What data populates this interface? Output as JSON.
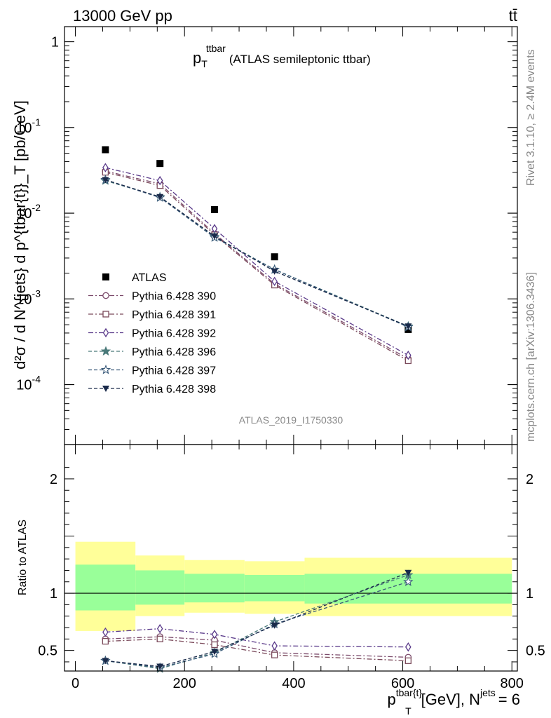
{
  "header": {
    "energy_label": "13000 GeV pp",
    "process_label": "tt̄"
  },
  "side": {
    "rivet_label": "Rivet 3.1.10, ≥ 2.4M events",
    "mcplots_label": "mcplots.cern.ch [arXiv:1306.3436]"
  },
  "watermark": "ATLAS_2019_I1750330",
  "chart_data": [
    {
      "type": "scatter",
      "title": "p_T^{ttbar} (ATLAS semileptonic ttbar)",
      "title_main": "p",
      "title_sub": "T",
      "title_sup": "ttbar",
      "title_rest": "(ATLAS semileptonic ttbar)",
      "ylabel": "d²σ / d N^{jets} d p^{tbar{t}}_T [pb/GeV]",
      "yscale": "log",
      "ylim": [
        2e-05,
        1.5
      ],
      "xlim": [
        -20,
        810
      ],
      "y_ticks": [
        {
          "value": 1,
          "label": "1"
        },
        {
          "value": 0.1,
          "label": "10^{-1}"
        },
        {
          "value": 0.01,
          "label": "10^{-2}"
        },
        {
          "value": 0.001,
          "label": "10^{-3}"
        },
        {
          "value": 0.0001,
          "label": "10^{-4}"
        }
      ],
      "legend_position": "left-middle",
      "series": [
        {
          "name": "ATLAS",
          "marker": "filled-square",
          "color": "#000000",
          "x": [
            55,
            155,
            255,
            365,
            610
          ],
          "y": [
            0.055,
            0.038,
            0.011,
            0.0031,
            0.00044
          ]
        },
        {
          "name": "Pythia 6.428 390",
          "marker": "open-circle",
          "line": "dashdot",
          "color": "#7b4a6b",
          "x": [
            55,
            155,
            255,
            365,
            610
          ],
          "y": [
            0.031,
            0.022,
            0.0058,
            0.0015,
            0.0002
          ]
        },
        {
          "name": "Pythia 6.428 391",
          "marker": "open-square",
          "line": "dashdot",
          "color": "#7b4a5b",
          "x": [
            55,
            155,
            255,
            365,
            610
          ],
          "y": [
            0.03,
            0.021,
            0.0056,
            0.00145,
            0.00019
          ]
        },
        {
          "name": "Pythia 6.428 392",
          "marker": "open-diamond",
          "line": "dashdot",
          "color": "#5a3a8a",
          "x": [
            55,
            155,
            255,
            365,
            610
          ],
          "y": [
            0.034,
            0.024,
            0.0066,
            0.0016,
            0.00022
          ]
        },
        {
          "name": "Pythia 6.428 396",
          "marker": "star",
          "line": "dashed",
          "color": "#4a7a7a",
          "x": [
            55,
            155,
            255,
            365,
            610
          ],
          "y": [
            0.024,
            0.0155,
            0.0053,
            0.0022,
            0.00048
          ]
        },
        {
          "name": "Pythia 6.428 397",
          "marker": "open-star",
          "line": "dashed",
          "color": "#3a5a7a",
          "x": [
            55,
            155,
            255,
            365,
            610
          ],
          "y": [
            0.0245,
            0.0152,
            0.0052,
            0.0022,
            0.00047
          ]
        },
        {
          "name": "Pythia 6.428 398",
          "marker": "filled-triangle-down",
          "line": "dashed",
          "color": "#1a2a4a",
          "x": [
            55,
            155,
            255,
            365,
            610
          ],
          "y": [
            0.0245,
            0.0155,
            0.0054,
            0.0021,
            0.00048
          ]
        }
      ]
    },
    {
      "type": "scatter",
      "ylabel": "Ratio to ATLAS",
      "xlabel": "p^{tbar{t}}_T [GeV], N^{jets} = 6",
      "xlabel_main": "p",
      "xlabel_sup": "tbar{t}",
      "xlabel_sub": "T",
      "xlabel_rest": "[GeV], N",
      "xlabel_sup2": "jets",
      "xlabel_end": "= 6",
      "yscale": "linear",
      "ylim": [
        0.32,
        2.3
      ],
      "xlim": [
        -20,
        810
      ],
      "x_ticks": [
        {
          "value": 0,
          "label": "0"
        },
        {
          "value": 200,
          "label": "200"
        },
        {
          "value": 400,
          "label": "400"
        },
        {
          "value": 600,
          "label": "600"
        },
        {
          "value": 800,
          "label": "800"
        }
      ],
      "y_ticks": [
        {
          "value": 0.5,
          "label": "0.5"
        },
        {
          "value": 1,
          "label": "1"
        },
        {
          "value": 2,
          "label": "2"
        }
      ],
      "uncertainty_bands": [
        {
          "x_low": 0,
          "x_high": 110,
          "stat_low": 0.85,
          "stat_high": 1.25,
          "total_low": 0.67,
          "total_high": 1.45
        },
        {
          "x_low": 110,
          "x_high": 200,
          "stat_low": 0.9,
          "stat_high": 1.2,
          "total_low": 0.8,
          "total_high": 1.33
        },
        {
          "x_low": 200,
          "x_high": 310,
          "stat_low": 0.92,
          "stat_high": 1.17,
          "total_low": 0.83,
          "total_high": 1.29
        },
        {
          "x_low": 310,
          "x_high": 420,
          "stat_low": 0.93,
          "stat_high": 1.16,
          "total_low": 0.82,
          "total_high": 1.28
        },
        {
          "x_low": 420,
          "x_high": 800,
          "stat_low": 0.91,
          "stat_high": 1.17,
          "total_low": 0.8,
          "total_high": 1.31
        }
      ],
      "band_colors": {
        "stat": "#99ff99",
        "total": "#ffff99"
      },
      "series": [
        {
          "name": "Pythia 6.428 390",
          "marker": "open-circle",
          "line": "dashdot",
          "color": "#7b4a6b",
          "x": [
            55,
            155,
            255,
            365,
            610
          ],
          "y": [
            0.6,
            0.62,
            0.59,
            0.48,
            0.44
          ]
        },
        {
          "name": "Pythia 6.428 391",
          "marker": "open-square",
          "line": "dashdot",
          "color": "#7b4a5b",
          "x": [
            55,
            155,
            255,
            365,
            610
          ],
          "y": [
            0.58,
            0.6,
            0.55,
            0.46,
            0.41
          ]
        },
        {
          "name": "Pythia 6.428 392",
          "marker": "open-diamond",
          "line": "dashdot",
          "color": "#5a3a8a",
          "x": [
            55,
            155,
            255,
            365,
            610
          ],
          "y": [
            0.66,
            0.69,
            0.64,
            0.54,
            0.53
          ]
        },
        {
          "name": "Pythia 6.428 396",
          "marker": "star",
          "line": "dashed",
          "color": "#4a7a7a",
          "x": [
            55,
            155,
            255,
            365,
            610
          ],
          "y": [
            0.41,
            0.34,
            0.48,
            0.75,
            1.16
          ]
        },
        {
          "name": "Pythia 6.428 397",
          "marker": "open-star",
          "line": "dashed",
          "color": "#3a5a7a",
          "x": [
            55,
            155,
            255,
            365,
            610
          ],
          "y": [
            0.41,
            0.35,
            0.47,
            0.73,
            1.1
          ]
        },
        {
          "name": "Pythia 6.428 398",
          "marker": "filled-triangle-down",
          "line": "dashed",
          "color": "#1a2a4a",
          "x": [
            55,
            155,
            255,
            365,
            610
          ],
          "y": [
            0.41,
            0.36,
            0.49,
            0.72,
            1.18
          ]
        }
      ]
    }
  ]
}
